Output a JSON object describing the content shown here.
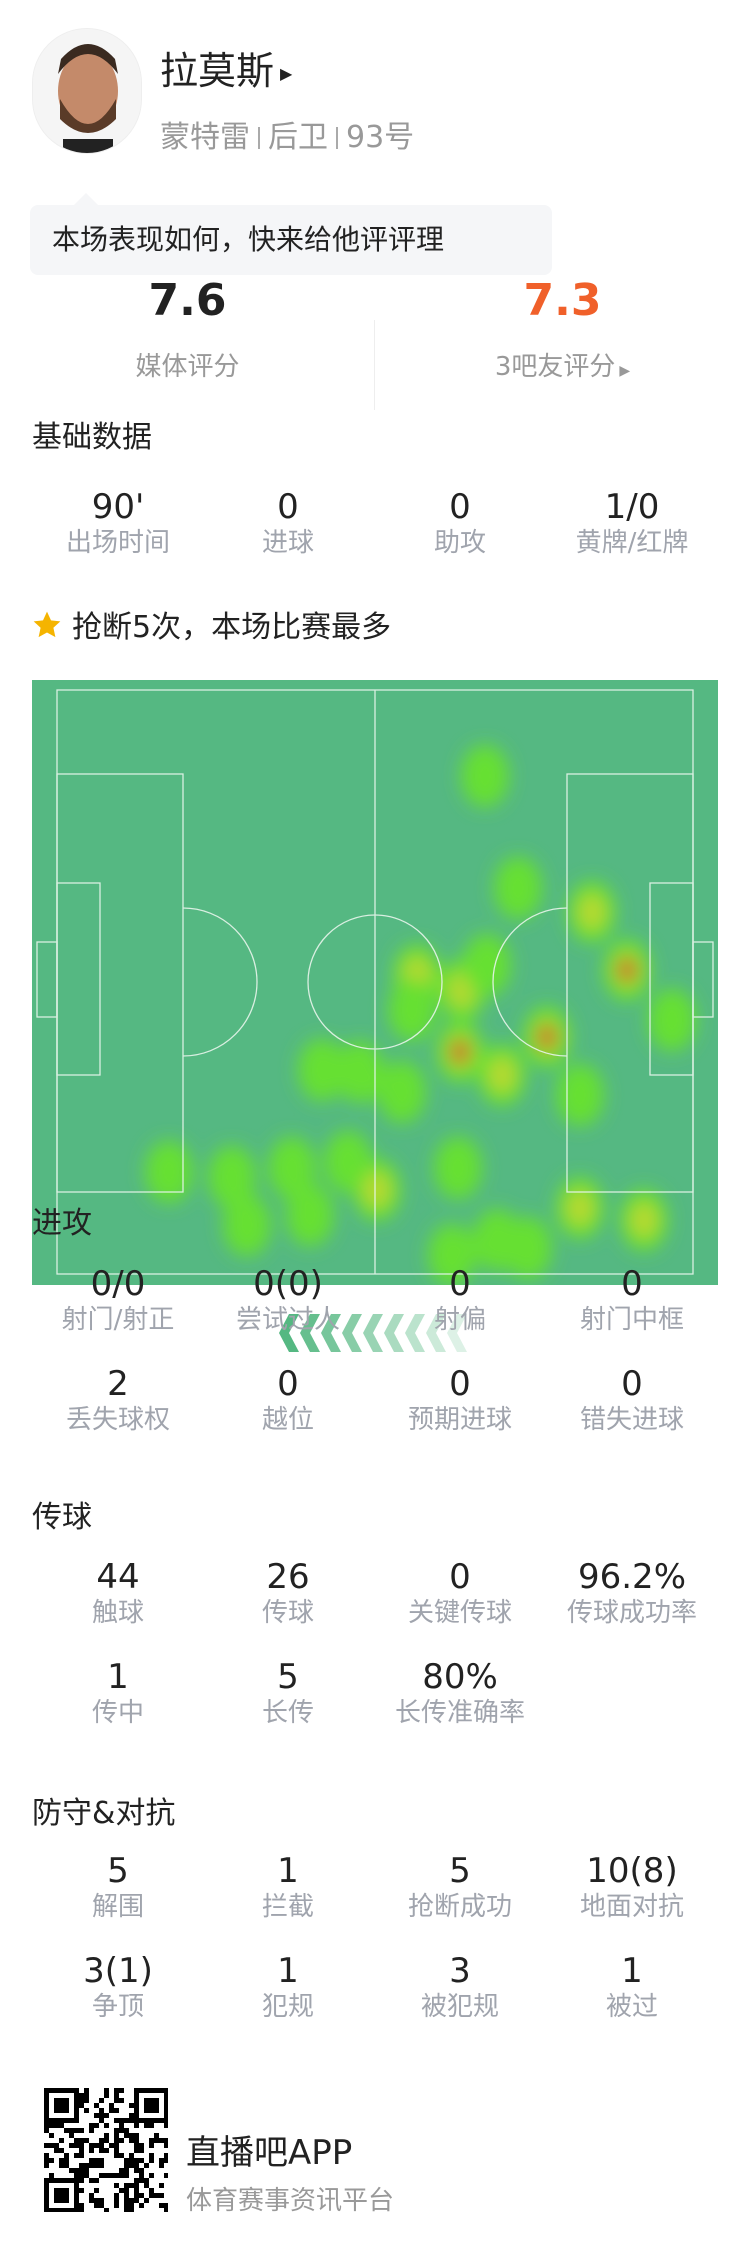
{
  "player": {
    "name": "拉莫斯",
    "team": "蒙特雷",
    "position": "后卫",
    "number": "93号"
  },
  "prompt": "本场表现如何，快来给他评评理",
  "ratings": {
    "media": {
      "value": "7.6",
      "label": "媒体评分"
    },
    "fans": {
      "value": "7.3",
      "label": "3吧友评分",
      "color": "#f0602a"
    }
  },
  "basic": {
    "title": "基础数据",
    "items": [
      {
        "v": "90'",
        "l": "出场时间"
      },
      {
        "v": "0",
        "l": "进球"
      },
      {
        "v": "0",
        "l": "助攻"
      },
      {
        "v": "1/0",
        "l": "黄牌/红牌"
      }
    ]
  },
  "highlight": "抢断5次，本场比赛最多",
  "attack": {
    "title": "进攻",
    "items": [
      {
        "v": "0/0",
        "l": "射门/射正"
      },
      {
        "v": "0(0)",
        "l": "尝试过人"
      },
      {
        "v": "0",
        "l": "射偏"
      },
      {
        "v": "0",
        "l": "射门中框"
      },
      {
        "v": "2",
        "l": "丢失球权"
      },
      {
        "v": "0",
        "l": "越位"
      },
      {
        "v": "0",
        "l": "预期进球"
      },
      {
        "v": "0",
        "l": "错失进球"
      }
    ]
  },
  "passing": {
    "title": "传球",
    "items": [
      {
        "v": "44",
        "l": "触球"
      },
      {
        "v": "26",
        "l": "传球"
      },
      {
        "v": "0",
        "l": "关键传球"
      },
      {
        "v": "96.2%",
        "l": "传球成功率"
      },
      {
        "v": "1",
        "l": "传中"
      },
      {
        "v": "5",
        "l": "长传"
      },
      {
        "v": "80%",
        "l": "长传准确率"
      }
    ]
  },
  "defense": {
    "title": "防守&对抗",
    "items": [
      {
        "v": "5",
        "l": "解围"
      },
      {
        "v": "1",
        "l": "拦截"
      },
      {
        "v": "5",
        "l": "抢断成功"
      },
      {
        "v": "10(8)",
        "l": "地面对抗"
      },
      {
        "v": "3(1)",
        "l": "争顶"
      },
      {
        "v": "1",
        "l": "犯规"
      },
      {
        "v": "3",
        "l": "被犯规"
      },
      {
        "v": "1",
        "l": "被过"
      }
    ]
  },
  "footer": {
    "app": "直播吧APP",
    "slogan": "体育赛事资讯平台"
  },
  "colors": {
    "pitch": "#55b882",
    "accent": "#f0602a",
    "star": "#f5b400"
  },
  "icons": {
    "star": "star-icon",
    "attack_direction": "chevron-left-icon"
  }
}
